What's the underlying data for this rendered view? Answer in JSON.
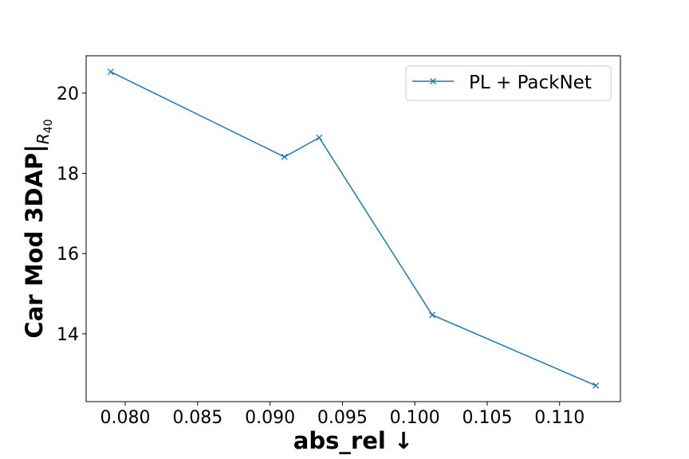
{
  "chart_data": {
    "type": "line",
    "x": [
      0.079,
      0.091,
      0.0934,
      0.1012,
      0.1125
    ],
    "series": [
      {
        "name": "PL + PackNet",
        "values": [
          20.53,
          18.41,
          18.89,
          14.47,
          12.71
        ],
        "color": "#1f77b4",
        "marker": "x"
      }
    ],
    "xlabel": "abs_rel ↓",
    "ylabel": "Car Mod 3DAP|",
    "ylabel_subscript": "R",
    "ylabel_subscript_index": "40",
    "xlim": [
      0.0773,
      0.1142
    ],
    "ylim": [
      12.31,
      20.93
    ],
    "xticks": [
      0.08,
      0.085,
      0.09,
      0.095,
      0.1,
      0.105,
      0.11
    ],
    "xtick_labels": [
      "0.080",
      "0.085",
      "0.090",
      "0.095",
      "0.100",
      "0.105",
      "0.110"
    ],
    "yticks": [
      14,
      16,
      18,
      20
    ],
    "ytick_labels": [
      "14",
      "16",
      "18",
      "20"
    ],
    "grid": false,
    "legend_position": "top-right"
  }
}
